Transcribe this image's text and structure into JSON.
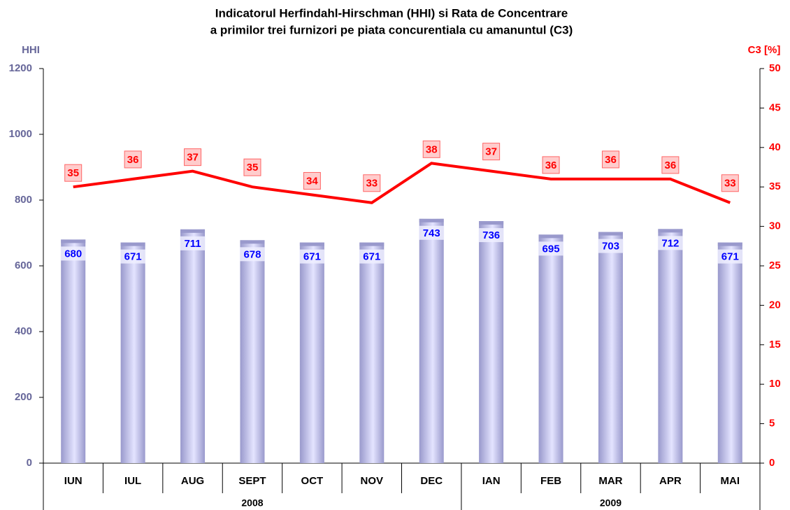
{
  "chart_data": {
    "type": "bar-line",
    "title": [
      "Indicatorul Herfindahl-Hirschman (HHI) si Rata de Concentrare",
      "a primilor trei furnizori pe piata concurentiala cu amanuntul (C3)"
    ],
    "y_label": "HHI",
    "y2_label": "C3 [%]",
    "groups": [
      {
        "name": "2008",
        "categories": [
          "IUN",
          "IUL",
          "AUG",
          "SEPT",
          "OCT",
          "NOV",
          "DEC"
        ]
      },
      {
        "name": "2009",
        "categories": [
          "IAN",
          "FEB",
          "MAR",
          "APR",
          "MAI"
        ]
      }
    ],
    "series": [
      {
        "name": "HHI",
        "type": "bar",
        "color": "#9999cc",
        "label_color": "#0000ff",
        "values": [
          680,
          671,
          711,
          678,
          671,
          671,
          743,
          736,
          695,
          703,
          712,
          671
        ]
      },
      {
        "name": "C3",
        "type": "line",
        "axis": "y2",
        "color": "#ff0000",
        "label_color": "#ff0000",
        "values": [
          35,
          36,
          37,
          35,
          34,
          33,
          38,
          37,
          36,
          36,
          36,
          33
        ]
      }
    ],
    "ylim": [
      0,
      1200
    ],
    "yticks": [
      0,
      200,
      400,
      600,
      800,
      1000,
      1200
    ],
    "y_color": "#666699",
    "y2lim": [
      0,
      50
    ],
    "y2ticks": [
      0,
      5,
      10,
      15,
      20,
      25,
      30,
      35,
      40,
      45,
      50
    ],
    "y2_color": "#ff0000"
  }
}
